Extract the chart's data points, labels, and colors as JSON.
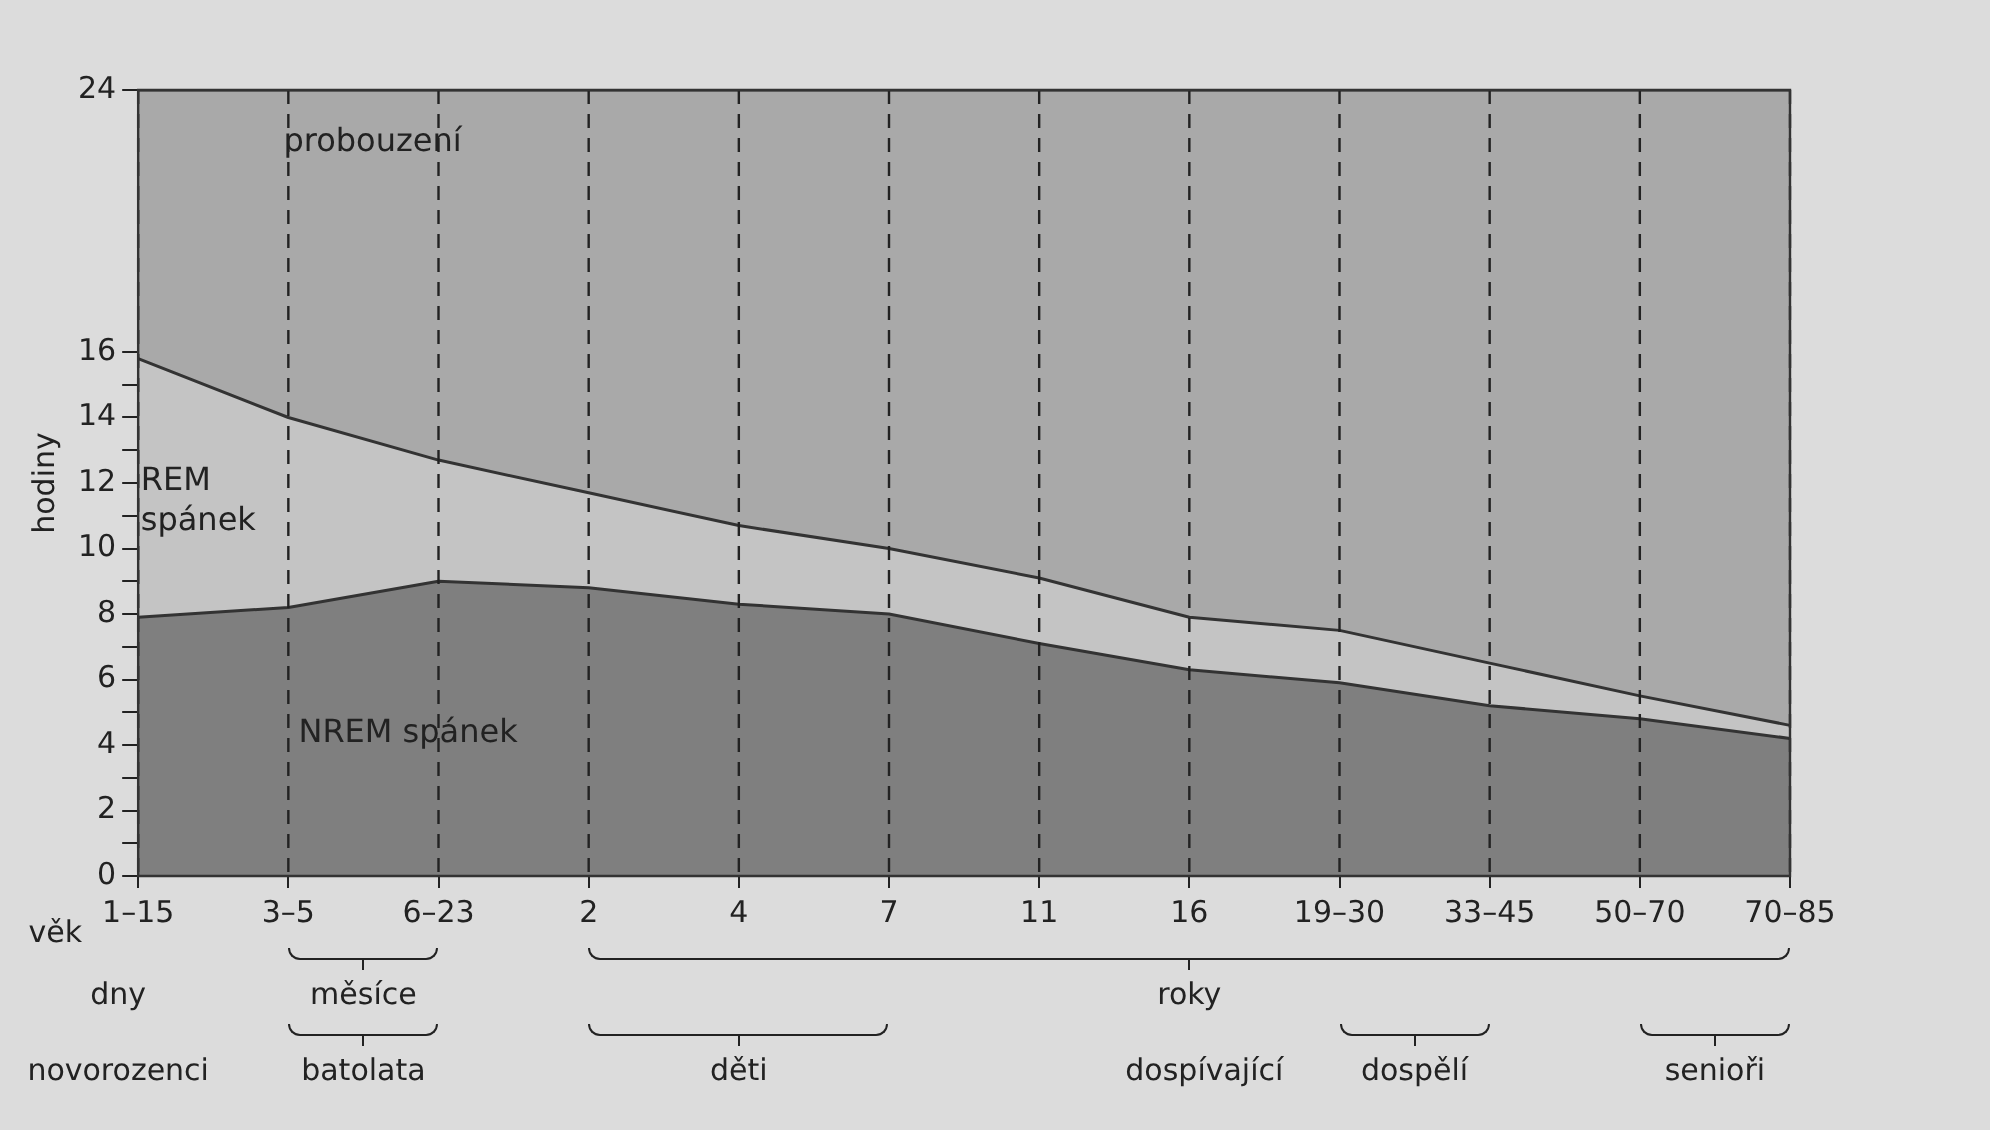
{
  "chart_data": {
    "type": "area",
    "stacked": true,
    "grid": "x",
    "legend": false,
    "xlabel": "věk",
    "ylabel": "hodiny",
    "categories": [
      "1–15",
      "3–5",
      "6–23",
      "2",
      "4",
      "7",
      "11",
      "16",
      "19–30",
      "33–45",
      "50–70",
      "70–85"
    ],
    "series": [
      {
        "name": "NREM spánek",
        "color": "#7f7f7f",
        "values": [
          7.9,
          8.2,
          9.0,
          8.8,
          8.3,
          8.0,
          7.1,
          6.3,
          5.9,
          5.2,
          4.8,
          4.2
        ]
      },
      {
        "name": "REM spánek",
        "color": "#c4c4c4",
        "values": [
          7.9,
          5.8,
          3.7,
          2.9,
          2.4,
          2.0,
          2.0,
          1.6,
          1.6,
          1.3,
          0.7,
          0.4
        ]
      },
      {
        "name": "probouzení",
        "color": "#a9a9a9",
        "values": [
          8.2,
          10.0,
          11.3,
          12.3,
          13.3,
          14.0,
          14.9,
          16.1,
          16.5,
          17.5,
          18.5,
          19.4
        ]
      }
    ],
    "ylim": [
      0,
      24
    ],
    "yticks": [
      0,
      {
        "value": 1,
        "label": null
      },
      2,
      {
        "value": 3,
        "label": null
      },
      4,
      {
        "value": 5,
        "label": null
      },
      6,
      {
        "value": 7,
        "label": null
      },
      8,
      {
        "value": 9,
        "label": null
      },
      10,
      {
        "value": 11,
        "label": null
      },
      12,
      {
        "value": 13,
        "label": null
      },
      14,
      {
        "value": 15,
        "label": null
      },
      16,
      24
    ],
    "annotations": [
      "dny",
      "měsíce",
      "roky",
      "novorozenci",
      "batolata",
      "děti",
      "dospívající",
      "dospělí",
      "senioři"
    ]
  }
}
